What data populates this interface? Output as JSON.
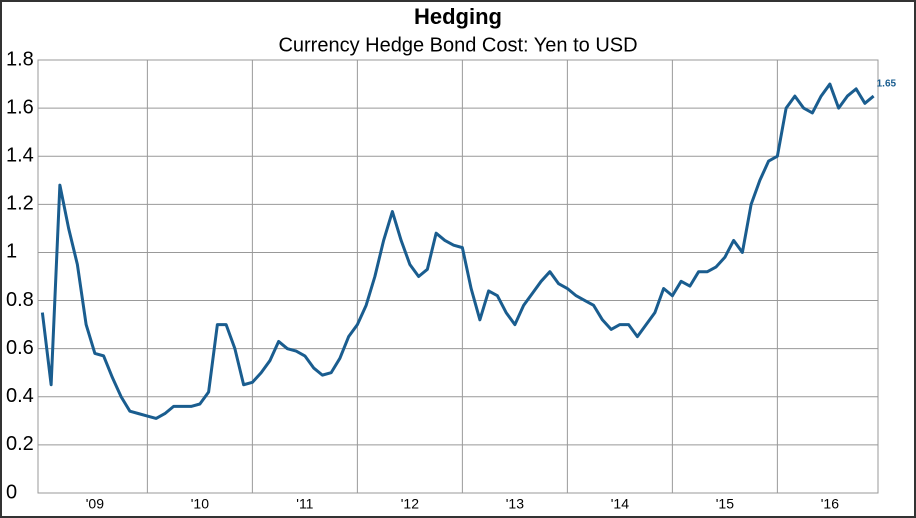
{
  "chart_data": {
    "type": "line",
    "title": "Hedging",
    "subtitle": "Currency Hedge Bond Cost: Yen to USD",
    "categories": [
      null,
      null,
      null,
      null,
      null,
      null,
      "'09",
      null,
      null,
      null,
      null,
      null,
      null,
      null,
      null,
      null,
      null,
      null,
      "'10",
      null,
      null,
      null,
      null,
      null,
      null,
      null,
      null,
      null,
      null,
      null,
      "'11",
      null,
      null,
      null,
      null,
      null,
      null,
      null,
      null,
      null,
      null,
      null,
      "'12",
      null,
      null,
      null,
      null,
      null,
      null,
      null,
      null,
      null,
      null,
      null,
      "'13",
      null,
      null,
      null,
      null,
      null,
      null,
      null,
      null,
      null,
      null,
      null,
      "'14",
      null,
      null,
      null,
      null,
      null,
      null,
      null,
      null,
      null,
      null,
      null,
      "'15",
      null,
      null,
      null,
      null,
      null,
      null,
      null,
      null,
      null,
      null,
      null,
      "'16",
      null,
      null,
      null,
      null,
      null
    ],
    "series": [
      {
        "color": "#1a5d8f",
        "values": [
          0.75,
          0.45,
          1.28,
          1.1,
          0.95,
          0.7,
          0.58,
          0.57,
          0.48,
          0.4,
          0.34,
          0.33,
          0.32,
          0.31,
          0.33,
          0.36,
          0.36,
          0.36,
          0.37,
          0.42,
          0.7,
          0.7,
          0.6,
          0.45,
          0.46,
          0.5,
          0.55,
          0.63,
          0.6,
          0.59,
          0.57,
          0.52,
          0.49,
          0.5,
          0.56,
          0.65,
          0.7,
          0.78,
          0.9,
          1.05,
          1.17,
          1.05,
          0.95,
          0.9,
          0.93,
          1.08,
          1.05,
          1.03,
          1.02,
          0.85,
          0.72,
          0.84,
          0.82,
          0.75,
          0.7,
          0.78,
          0.83,
          0.88,
          0.92,
          0.87,
          0.85,
          0.82,
          0.8,
          0.78,
          0.72,
          0.68,
          0.7,
          0.7,
          0.65,
          0.7,
          0.75,
          0.85,
          0.82,
          0.88,
          0.86,
          0.92,
          0.92,
          0.94,
          0.98,
          1.05,
          1.0,
          1.2,
          1.3,
          1.38,
          1.4,
          1.6,
          1.65,
          1.6,
          1.58,
          1.65,
          1.7,
          1.6,
          1.65,
          1.68,
          1.62,
          1.65
        ]
      }
    ],
    "ylim": [
      0,
      1.8
    ],
    "yticks": [
      0,
      0.2,
      0.4,
      0.6,
      0.8,
      1,
      1.2,
      1.4,
      1.6,
      1.8
    ],
    "grid": true
  }
}
